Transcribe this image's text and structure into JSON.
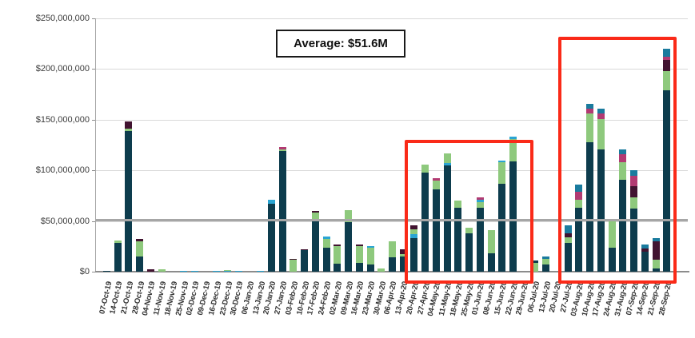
{
  "chart_data": {
    "type": "bar",
    "stacked": true,
    "title": "",
    "xlabel": "",
    "ylabel": "",
    "ylim": [
      0,
      250000000
    ],
    "grid": "horizontal",
    "legend": "none",
    "y_ticks": [
      {
        "value_m": 250,
        "label": "$250,000,000"
      },
      {
        "value_m": 200,
        "label": "$200,000,000"
      },
      {
        "value_m": 150,
        "label": "$150,000,000"
      },
      {
        "value_m": 100,
        "label": "$100,000,000"
      },
      {
        "value_m": 50,
        "label": "$50,000,000"
      },
      {
        "value_m": 0,
        "label": "$0"
      }
    ],
    "average": {
      "label": "Average: $51.6M",
      "value_m": 51.6
    },
    "colors": {
      "teal": "#0d3c4d",
      "green": "#8ec97d",
      "maroon": "#411330",
      "magenta": "#b23a72",
      "cyan": "#2aa5d3",
      "blue": "#1a7b9e",
      "average_line": "#a6a6a6",
      "highlight": "#fa2a18"
    },
    "bars": [
      {
        "date": "07-Oct-19",
        "segments": [
          [
            "teal",
            0.5
          ]
        ]
      },
      {
        "date": "14-Oct-19",
        "segments": [
          [
            "teal",
            28
          ],
          [
            "green",
            3
          ]
        ]
      },
      {
        "date": "21-Oct-19",
        "segments": [
          [
            "teal",
            139
          ],
          [
            "green",
            2
          ],
          [
            "maroon",
            7
          ]
        ]
      },
      {
        "date": "28-Oct-19",
        "segments": [
          [
            "teal",
            15
          ],
          [
            "green",
            15
          ],
          [
            "maroon",
            2
          ]
        ]
      },
      {
        "date": "04-Nov-19",
        "segments": [
          [
            "maroon",
            2
          ]
        ]
      },
      {
        "date": "11-Nov-19",
        "segments": [
          [
            "green",
            2.5
          ]
        ]
      },
      {
        "date": "18-Nov-19",
        "segments": []
      },
      {
        "date": "25-Nov-19",
        "segments": [
          [
            "cyan",
            1
          ]
        ]
      },
      {
        "date": "02-Dec-19",
        "segments": [
          [
            "cyan",
            1
          ]
        ]
      },
      {
        "date": "09-Dec-19",
        "segments": []
      },
      {
        "date": "16-Dec-19",
        "segments": [
          [
            "cyan",
            1
          ]
        ]
      },
      {
        "date": "23-Dec-19",
        "segments": [
          [
            "cyan",
            1
          ],
          [
            "green",
            0.5
          ]
        ]
      },
      {
        "date": "30-Dec-19",
        "segments": [
          [
            "cyan",
            1
          ]
        ]
      },
      {
        "date": "06-Jan-20",
        "segments": []
      },
      {
        "date": "13-Jan-20",
        "segments": [
          [
            "cyan",
            1
          ]
        ]
      },
      {
        "date": "20-Jan-20",
        "segments": [
          [
            "teal",
            67
          ],
          [
            "cyan",
            4
          ]
        ]
      },
      {
        "date": "27-Jan-20",
        "segments": [
          [
            "teal",
            119
          ],
          [
            "green",
            2
          ],
          [
            "magenta",
            2
          ]
        ]
      },
      {
        "date": "03-Feb-20",
        "segments": [
          [
            "green",
            12
          ],
          [
            "maroon",
            1
          ]
        ]
      },
      {
        "date": "10-Feb-20",
        "segments": [
          [
            "teal",
            21
          ],
          [
            "maroon",
            1
          ]
        ]
      },
      {
        "date": "17-Feb-20",
        "segments": [
          [
            "teal",
            50
          ],
          [
            "green",
            8
          ],
          [
            "maroon",
            2
          ]
        ]
      },
      {
        "date": "24-Feb-20",
        "segments": [
          [
            "teal",
            24
          ],
          [
            "green",
            8
          ],
          [
            "cyan",
            3
          ]
        ]
      },
      {
        "date": "02-Mar-20",
        "segments": [
          [
            "teal",
            8
          ],
          [
            "green",
            17
          ],
          [
            "maroon",
            2
          ]
        ]
      },
      {
        "date": "09-Mar-20",
        "segments": [
          [
            "teal",
            49
          ],
          [
            "green",
            12
          ]
        ]
      },
      {
        "date": "16-Mar-20",
        "segments": [
          [
            "teal",
            9
          ],
          [
            "green",
            16
          ],
          [
            "maroon",
            2
          ]
        ]
      },
      {
        "date": "23-Mar-20",
        "segments": [
          [
            "teal",
            7
          ],
          [
            "green",
            17
          ],
          [
            "cyan",
            1
          ]
        ]
      },
      {
        "date": "30-Mar-20",
        "segments": [
          [
            "green",
            3
          ]
        ]
      },
      {
        "date": "06-Apr-20",
        "segments": [
          [
            "teal",
            14
          ],
          [
            "green",
            16
          ]
        ]
      },
      {
        "date": "13-Apr-20",
        "segments": [
          [
            "teal",
            15
          ],
          [
            "green",
            2
          ],
          [
            "maroon",
            5
          ]
        ]
      },
      {
        "date": "20-Apr-20",
        "segments": [
          [
            "teal",
            33
          ],
          [
            "cyan",
            4
          ],
          [
            "green",
            5
          ],
          [
            "maroon",
            4
          ]
        ]
      },
      {
        "date": "27-Apr-20",
        "segments": [
          [
            "teal",
            98
          ],
          [
            "green",
            8
          ]
        ]
      },
      {
        "date": "04-May-20",
        "segments": [
          [
            "teal",
            81
          ],
          [
            "green",
            9
          ],
          [
            "magenta",
            2
          ]
        ]
      },
      {
        "date": "11-May-20",
        "segments": [
          [
            "teal",
            105
          ],
          [
            "cyan",
            2
          ],
          [
            "green",
            10
          ]
        ]
      },
      {
        "date": "18-May-20",
        "segments": [
          [
            "teal",
            63
          ],
          [
            "green",
            7
          ]
        ]
      },
      {
        "date": "25-May-20",
        "segments": [
          [
            "teal",
            38
          ],
          [
            "green",
            5
          ]
        ]
      },
      {
        "date": "01-Jun-20",
        "segments": [
          [
            "teal",
            63
          ],
          [
            "green",
            6
          ],
          [
            "cyan",
            2
          ],
          [
            "magenta",
            2
          ]
        ]
      },
      {
        "date": "08-Jun-20",
        "segments": [
          [
            "teal",
            18
          ],
          [
            "green",
            23
          ]
        ]
      },
      {
        "date": "15-Jun-20",
        "segments": [
          [
            "teal",
            87
          ],
          [
            "green",
            21
          ],
          [
            "cyan",
            2
          ]
        ]
      },
      {
        "date": "22-Jun-20",
        "segments": [
          [
            "teal",
            109
          ],
          [
            "green",
            22
          ],
          [
            "cyan",
            2
          ]
        ]
      },
      {
        "date": "29-Jun-20",
        "segments": []
      },
      {
        "date": "06-Jul-20",
        "segments": [
          [
            "green",
            9
          ],
          [
            "teal",
            2
          ]
        ]
      },
      {
        "date": "13-Jul-20",
        "segments": [
          [
            "teal",
            7
          ],
          [
            "green",
            6
          ],
          [
            "blue",
            2
          ]
        ]
      },
      {
        "date": "20-Jul-20",
        "segments": []
      },
      {
        "date": "27-Jul-20",
        "segments": [
          [
            "teal",
            28
          ],
          [
            "green",
            6
          ],
          [
            "maroon",
            4
          ],
          [
            "blue",
            8
          ]
        ]
      },
      {
        "date": "03-Aug-20",
        "segments": [
          [
            "teal",
            63
          ],
          [
            "green",
            8
          ],
          [
            "magenta",
            8
          ],
          [
            "blue",
            7
          ]
        ]
      },
      {
        "date": "10-Aug-20",
        "segments": [
          [
            "teal",
            128
          ],
          [
            "green",
            28
          ],
          [
            "magenta",
            5
          ],
          [
            "blue",
            5
          ]
        ]
      },
      {
        "date": "17-Aug-20",
        "segments": [
          [
            "teal",
            121
          ],
          [
            "green",
            30
          ],
          [
            "magenta",
            5
          ],
          [
            "blue",
            5
          ]
        ]
      },
      {
        "date": "24-Aug-20",
        "segments": [
          [
            "teal",
            24
          ],
          [
            "green",
            28
          ]
        ]
      },
      {
        "date": "31-Aug-20",
        "segments": [
          [
            "teal",
            91
          ],
          [
            "green",
            17
          ],
          [
            "magenta",
            8
          ],
          [
            "blue",
            5
          ]
        ]
      },
      {
        "date": "07-Sep-20",
        "segments": [
          [
            "teal",
            62
          ],
          [
            "green",
            11
          ],
          [
            "maroon",
            11
          ],
          [
            "magenta",
            11
          ],
          [
            "blue",
            5
          ]
        ]
      },
      {
        "date": "14-Sep-20",
        "segments": [
          [
            "teal",
            20
          ],
          [
            "maroon",
            3
          ],
          [
            "blue",
            4
          ]
        ]
      },
      {
        "date": "21-Sep-20",
        "segments": [
          [
            "teal",
            3
          ],
          [
            "green",
            9
          ],
          [
            "maroon",
            18
          ],
          [
            "blue",
            3
          ]
        ]
      },
      {
        "date": "28-Sep-20",
        "segments": [
          [
            "teal",
            179
          ],
          [
            "green",
            19
          ],
          [
            "maroon",
            11
          ],
          [
            "magenta",
            3
          ],
          [
            "blue",
            8
          ]
        ]
      }
    ],
    "highlights": [
      {
        "from": "20-Apr-20",
        "to": "29-Jun-20",
        "top_value_m": 127
      },
      {
        "from": "27-Jul-20",
        "to": "28-Sep-20",
        "top_value_m": 229
      }
    ]
  }
}
